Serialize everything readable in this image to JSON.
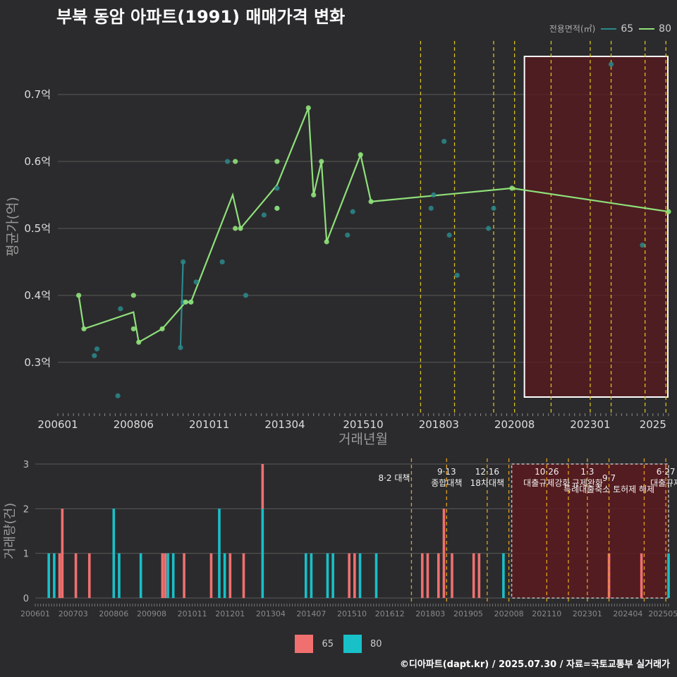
{
  "title": "부북 동암 아파트(1991) 매매가격 변화",
  "credit": "©디아파트(dapt.kr) / 2025.07.30 / 자료=국토교통부 실거래가",
  "colors": {
    "s65": "#2a8a8c",
    "s80": "#8fe07a",
    "bar65": "#f07070",
    "bar80": "#18c0c8",
    "policy": "#d8c020",
    "policy_bottom": "#e0a020",
    "highlight_fill": "#5a1a1e",
    "grid": "#5a5a5a"
  },
  "chart_data": [
    {
      "name": "price",
      "type": "line",
      "xlabel": "거래년월",
      "ylabel": "평균가(억)",
      "legend_title": "전용면적(㎡)",
      "legend_position": "top-right",
      "x_ticks": [
        "200601",
        "200806",
        "201011",
        "201304",
        "201510",
        "201803",
        "202008",
        "202301",
        "2025"
      ],
      "y_ticks": [
        "0.3억",
        "0.4억",
        "0.5억",
        "0.6억",
        "0.7억"
      ],
      "ylim": [
        0.225,
        0.78
      ],
      "grid": true,
      "policy_lines": [
        "2017-08",
        "2018-09",
        "2019-12",
        "2020-08",
        "2021-10",
        "2023-01",
        "2023-09",
        "2024-10",
        "2025-06"
      ],
      "highlight_range": [
        "2020-08",
        "2025-07"
      ],
      "series": [
        {
          "name": "65",
          "points": [
            [
              "2007-03",
              0.31
            ],
            [
              "2007-04",
              0.32
            ],
            [
              "2007-12",
              0.25
            ],
            [
              "2008-01",
              0.38
            ],
            [
              "2009-12",
              0.322
            ],
            [
              "2010-01",
              0.45
            ],
            [
              "2010-01",
              0.39
            ],
            [
              "2010-04",
              0.39
            ],
            [
              "2010-06",
              0.42
            ],
            [
              "2011-04",
              0.45
            ],
            [
              "2011-06",
              0.6
            ],
            [
              "2012-01",
              0.4
            ],
            [
              "2012-08",
              0.52
            ],
            [
              "2013-01",
              0.56
            ],
            [
              "2013-01",
              0.53
            ],
            [
              "2015-04",
              0.49
            ],
            [
              "2015-06",
              0.525
            ],
            [
              "2017-12",
              0.53
            ],
            [
              "2018-01",
              0.55
            ],
            [
              "2018-05",
              0.63
            ],
            [
              "2018-07",
              0.49
            ],
            [
              "2018-10",
              0.43
            ],
            [
              "2019-10",
              0.5
            ],
            [
              "2019-12",
              0.53
            ],
            [
              "2023-09",
              0.745
            ],
            [
              "2024-09",
              0.475
            ]
          ],
          "line": [
            [
              "2009-12",
              0.322
            ],
            [
              "2010-01",
              0.45
            ]
          ]
        },
        {
          "name": "80",
          "points": [
            [
              "2006-09",
              0.4
            ],
            [
              "2006-11",
              0.35
            ],
            [
              "2008-06",
              0.4
            ],
            [
              "2008-06",
              0.35
            ],
            [
              "2008-08",
              0.33
            ],
            [
              "2009-05",
              0.35
            ],
            [
              "2010-02",
              0.39
            ],
            [
              "2010-04",
              0.39
            ],
            [
              "2011-09",
              0.6
            ],
            [
              "2011-09",
              0.5
            ],
            [
              "2011-11",
              0.5
            ],
            [
              "2013-01",
              0.6
            ],
            [
              "2013-01",
              0.53
            ],
            [
              "2014-01",
              0.68
            ],
            [
              "2014-03",
              0.55
            ],
            [
              "2014-06",
              0.6
            ],
            [
              "2014-08",
              0.48
            ],
            [
              "2015-09",
              0.61
            ],
            [
              "2016-01",
              0.54
            ],
            [
              "2020-07",
              0.56
            ],
            [
              "2025-07",
              0.525
            ]
          ],
          "line": [
            [
              "2006-09",
              0.4
            ],
            [
              "2006-11",
              0.35
            ],
            [
              "2008-06",
              0.375
            ],
            [
              "2008-08",
              0.33
            ],
            [
              "2009-05",
              0.35
            ],
            [
              "2010-02",
              0.39
            ],
            [
              "2010-04",
              0.39
            ],
            [
              "2011-08",
              0.55
            ],
            [
              "2011-11",
              0.5
            ],
            [
              "2013-01",
              0.565
            ],
            [
              "2014-01",
              0.68
            ],
            [
              "2014-03",
              0.55
            ],
            [
              "2014-06",
              0.6
            ],
            [
              "2014-08",
              0.48
            ],
            [
              "2015-09",
              0.61
            ],
            [
              "2016-01",
              0.54
            ],
            [
              "2020-07",
              0.56
            ],
            [
              "2025-07",
              0.525
            ]
          ]
        }
      ]
    },
    {
      "name": "volume",
      "type": "bar",
      "xlabel": "",
      "ylabel": "거래량(건)",
      "x_ticks": [
        "200601",
        "200703",
        "200806",
        "200908",
        "201011",
        "201201",
        "201304",
        "201407",
        "201510",
        "201612",
        "201803",
        "201905",
        "202008",
        "202110",
        "202301",
        "202404",
        "202505"
      ],
      "y_ticks": [
        "0",
        "1",
        "2",
        "3"
      ],
      "ylim": [
        0,
        3
      ],
      "grid": true,
      "stack_order": [
        "80",
        "65"
      ],
      "legend_position": "bottom",
      "bars": [
        {
          "date": "2006-06",
          "s65": 0,
          "s80": 1
        },
        {
          "date": "2006-08",
          "s65": 0,
          "s80": 1
        },
        {
          "date": "2006-10",
          "s65": 1,
          "s80": 0
        },
        {
          "date": "2006-11",
          "s65": 2,
          "s80": 0
        },
        {
          "date": "2007-04",
          "s65": 1,
          "s80": 0
        },
        {
          "date": "2007-09",
          "s65": 1,
          "s80": 0
        },
        {
          "date": "2008-06",
          "s65": 0,
          "s80": 2
        },
        {
          "date": "2008-08",
          "s65": 0,
          "s80": 1
        },
        {
          "date": "2009-04",
          "s65": 0,
          "s80": 1
        },
        {
          "date": "2009-12",
          "s65": 1,
          "s80": 0
        },
        {
          "date": "2010-01",
          "s65": 1,
          "s80": 0
        },
        {
          "date": "2010-02",
          "s65": 0,
          "s80": 1
        },
        {
          "date": "2010-04",
          "s65": 0,
          "s80": 1
        },
        {
          "date": "2010-08",
          "s65": 1,
          "s80": 0
        },
        {
          "date": "2011-06",
          "s65": 1,
          "s80": 0
        },
        {
          "date": "2011-09",
          "s65": 0,
          "s80": 2
        },
        {
          "date": "2011-11",
          "s65": 0,
          "s80": 1
        },
        {
          "date": "2012-01",
          "s65": 1,
          "s80": 0
        },
        {
          "date": "2012-06",
          "s65": 1,
          "s80": 0
        },
        {
          "date": "2013-01",
          "s65": 1,
          "s80": 2
        },
        {
          "date": "2014-05",
          "s65": 0,
          "s80": 1
        },
        {
          "date": "2014-07",
          "s65": 0,
          "s80": 1
        },
        {
          "date": "2015-01",
          "s65": 0,
          "s80": 1
        },
        {
          "date": "2015-03",
          "s65": 0,
          "s80": 1
        },
        {
          "date": "2015-09",
          "s65": 1,
          "s80": 0
        },
        {
          "date": "2015-11",
          "s65": 1,
          "s80": 0
        },
        {
          "date": "2016-01",
          "s65": 0,
          "s80": 1
        },
        {
          "date": "2016-07",
          "s65": 0,
          "s80": 1
        },
        {
          "date": "2017-12",
          "s65": 1,
          "s80": 0
        },
        {
          "date": "2018-02",
          "s65": 1,
          "s80": 0
        },
        {
          "date": "2018-06",
          "s65": 1,
          "s80": 0
        },
        {
          "date": "2018-08",
          "s65": 2,
          "s80": 0
        },
        {
          "date": "2018-11",
          "s65": 1,
          "s80": 0
        },
        {
          "date": "2019-07",
          "s65": 1,
          "s80": 0
        },
        {
          "date": "2019-09",
          "s65": 1,
          "s80": 0
        },
        {
          "date": "2020-06",
          "s65": 0,
          "s80": 1
        },
        {
          "date": "2023-09",
          "s65": 1,
          "s80": 0
        },
        {
          "date": "2024-09",
          "s65": 1,
          "s80": 0
        },
        {
          "date": "2025-07",
          "s65": 0,
          "s80": 1
        }
      ],
      "policy_lines": [
        "2017-08",
        "2018-09",
        "2019-12",
        "2020-08",
        "2021-10",
        "2022-06",
        "2023-01",
        "2023-09",
        "2024-10",
        "2025-06"
      ],
      "highlight_range": [
        "2020-08",
        "2025-07"
      ],
      "annotations": [
        {
          "date": "2017-08",
          "lines": [
            "8·2 대책"
          ],
          "anchor": "end",
          "row": 1
        },
        {
          "date": "2018-09",
          "lines": [
            "9·13",
            "종합대책"
          ],
          "anchor": "middle",
          "row": 0
        },
        {
          "date": "2019-12",
          "lines": [
            "12·16",
            "18차대책"
          ],
          "anchor": "middle",
          "row": 0
        },
        {
          "date": "2021-10",
          "lines": [
            "10·26",
            "대출규제강화"
          ],
          "anchor": "middle",
          "row": 0
        },
        {
          "date": "2023-01",
          "lines": [
            "1·3",
            "규제완화"
          ],
          "anchor": "middle",
          "row": 0
        },
        {
          "date": "2023-09",
          "lines": [
            "9·7",
            "특례대출축소 토허제 해제"
          ],
          "anchor": "middle",
          "row": 1
        },
        {
          "date": "2025-06",
          "lines": [
            "6·27",
            "대출규제"
          ],
          "anchor": "middle",
          "row": 0
        }
      ]
    }
  ],
  "legend_bottom": [
    {
      "label": "65",
      "color": "#f07070"
    },
    {
      "label": "80",
      "color": "#18c0c8"
    }
  ]
}
